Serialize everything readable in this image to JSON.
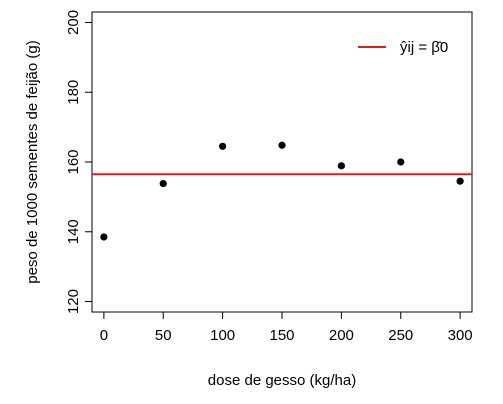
{
  "chart_data": {
    "type": "scatter",
    "title": "",
    "xlabel": "dose de gesso (kg/ha)",
    "ylabel": "peso de 1000 sementes de feijão (g)",
    "xlim": [
      -10,
      310
    ],
    "ylim": [
      117,
      203
    ],
    "x_ticks": [
      0,
      50,
      100,
      150,
      200,
      250,
      300
    ],
    "x_tick_labels": [
      "0",
      "50",
      "100",
      "150",
      "200",
      "250",
      "300"
    ],
    "y_ticks": [
      120,
      140,
      160,
      180,
      200
    ],
    "y_tick_labels": [
      "120",
      "140",
      "160",
      "180",
      "200"
    ],
    "grid": false,
    "legend_position": "top-right",
    "series": [
      {
        "type": "scatter",
        "color": "#000000",
        "x": [
          0,
          50,
          100,
          150,
          200,
          250,
          300
        ],
        "y": [
          138.5,
          153.8,
          164.5,
          164.8,
          158.9,
          160.0,
          154.5
        ]
      }
    ],
    "reference_line": {
      "orientation": "horizontal",
      "y": 156.5,
      "color": "#e31a1c",
      "legend_label": "ŷij = β̂0"
    }
  }
}
